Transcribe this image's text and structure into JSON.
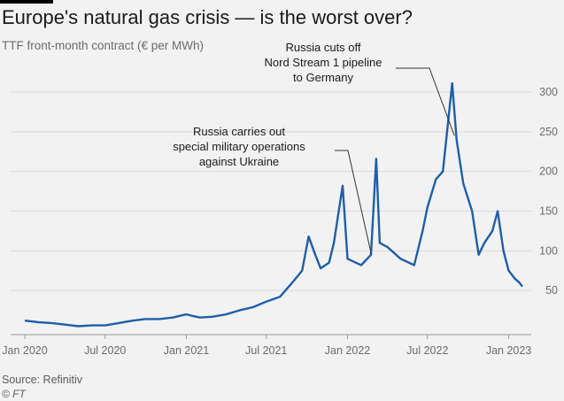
{
  "header": {
    "title": "Europe's natural gas crisis — is the worst over?",
    "subtitle": "TTF front-month contract (€ per MWh)"
  },
  "footer": {
    "source": "Source: Refinitiv",
    "credit": "© FT"
  },
  "colors": {
    "line": "#1f5ea8",
    "grid": "#d9d9d9",
    "accent_bar": "#000000"
  },
  "chart_data": {
    "type": "line",
    "title": "Europe's natural gas crisis — is the worst over?",
    "ylabel": "TTF front-month contract (€ per MWh)",
    "xlabel": "",
    "xlim": [
      "2020-01-01",
      "2023-02-01"
    ],
    "ylim": [
      0,
      320
    ],
    "yticks": [
      50,
      100,
      150,
      200,
      250,
      300
    ],
    "xticks": [
      {
        "label": "Jan 2020",
        "date": "2020-01-01"
      },
      {
        "label": "Jul 2020",
        "date": "2020-07-01"
      },
      {
        "label": "Jan 2021",
        "date": "2021-01-01"
      },
      {
        "label": "Jul 2021",
        "date": "2021-07-01"
      },
      {
        "label": "Jan 2022",
        "date": "2022-01-01"
      },
      {
        "label": "Jul 2022",
        "date": "2022-07-01"
      },
      {
        "label": "Jan 2023",
        "date": "2023-01-01"
      }
    ],
    "grid": true,
    "y_axis_side": "right",
    "series": [
      {
        "points": [
          [
            "2020-01-01",
            12
          ],
          [
            "2020-02-01",
            10
          ],
          [
            "2020-03-01",
            9
          ],
          [
            "2020-04-01",
            7
          ],
          [
            "2020-05-01",
            5
          ],
          [
            "2020-06-01",
            6
          ],
          [
            "2020-07-01",
            6
          ],
          [
            "2020-08-01",
            9
          ],
          [
            "2020-09-01",
            12
          ],
          [
            "2020-10-01",
            14
          ],
          [
            "2020-11-01",
            14
          ],
          [
            "2020-12-01",
            16
          ],
          [
            "2021-01-01",
            20
          ],
          [
            "2021-01-15",
            18
          ],
          [
            "2021-02-01",
            16
          ],
          [
            "2021-03-01",
            17
          ],
          [
            "2021-04-01",
            20
          ],
          [
            "2021-05-01",
            25
          ],
          [
            "2021-06-01",
            29
          ],
          [
            "2021-07-01",
            36
          ],
          [
            "2021-08-01",
            42
          ],
          [
            "2021-09-01",
            62
          ],
          [
            "2021-09-20",
            75
          ],
          [
            "2021-10-05",
            118
          ],
          [
            "2021-10-20",
            95
          ],
          [
            "2021-11-01",
            78
          ],
          [
            "2021-11-20",
            85
          ],
          [
            "2021-12-01",
            110
          ],
          [
            "2021-12-21",
            182
          ],
          [
            "2022-01-01",
            90
          ],
          [
            "2022-01-20",
            85
          ],
          [
            "2022-02-01",
            82
          ],
          [
            "2022-02-23",
            95
          ],
          [
            "2022-03-07",
            216
          ],
          [
            "2022-03-15",
            110
          ],
          [
            "2022-04-01",
            105
          ],
          [
            "2022-05-01",
            90
          ],
          [
            "2022-06-01",
            82
          ],
          [
            "2022-06-20",
            125
          ],
          [
            "2022-07-01",
            155
          ],
          [
            "2022-07-20",
            190
          ],
          [
            "2022-08-05",
            200
          ],
          [
            "2022-08-26",
            311
          ],
          [
            "2022-09-05",
            240
          ],
          [
            "2022-09-20",
            185
          ],
          [
            "2022-10-10",
            150
          ],
          [
            "2022-10-25",
            95
          ],
          [
            "2022-11-07",
            110
          ],
          [
            "2022-11-25",
            125
          ],
          [
            "2022-12-07",
            150
          ],
          [
            "2022-12-20",
            100
          ],
          [
            "2023-01-01",
            75
          ],
          [
            "2023-01-15",
            65
          ],
          [
            "2023-01-25",
            60
          ],
          [
            "2023-02-01",
            55
          ]
        ]
      }
    ],
    "annotations": [
      {
        "lines": [
          "Russia carries out",
          "special military operations",
          "against Ukraine"
        ],
        "date": "2022-02-24",
        "value": 95
      },
      {
        "lines": [
          "Russia cuts off",
          "Nord Stream 1 pipeline",
          "to Germany"
        ],
        "date": "2022-08-31",
        "value": 245
      }
    ]
  }
}
